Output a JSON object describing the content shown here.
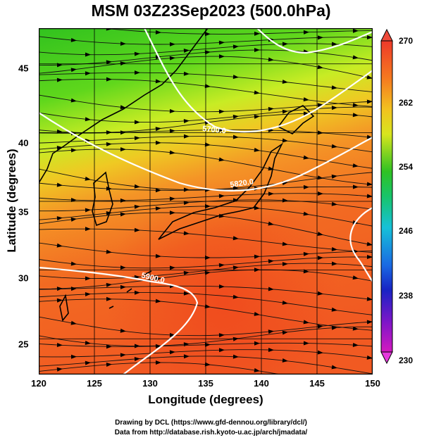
{
  "title": "MSM 03Z23Sep2023 (500.0hPa)",
  "axes": {
    "xlabel": "Longitude (degrees)",
    "ylabel": "Latitude  (degrees)",
    "x_ticks": [
      "120",
      "125",
      "130",
      "135",
      "140",
      "145",
      "150"
    ],
    "y_ticks": [
      "25",
      "30",
      "35",
      "40",
      "45"
    ]
  },
  "map_data": {
    "extent": {
      "lon": [
        120,
        150
      ],
      "lat": [
        22.4,
        47.6
      ]
    },
    "grid_lon": [
      120,
      125,
      130,
      135,
      140,
      145,
      150
    ],
    "grid_lat": [
      25,
      30,
      35,
      40,
      45
    ],
    "field": "temperature (K) shaded, wind streamlines",
    "contours": [
      {
        "label": "5700.0",
        "color": "#ffffff"
      },
      {
        "label": "5820.0",
        "color": "#ffffff"
      },
      {
        "label": "5900.0",
        "color": "#ffffff"
      }
    ]
  },
  "colorbar": {
    "min": 230,
    "max": 270,
    "ticks": [
      "270",
      "262",
      "254",
      "246",
      "238",
      "230"
    ]
  },
  "credits": {
    "line1": "Drawing by DCL (https://www.gfd-dennou.org/library/dcl/)",
    "line2": "Data from http://database.rish.kyoto-u.ac.jp/arch/jmadata/"
  }
}
